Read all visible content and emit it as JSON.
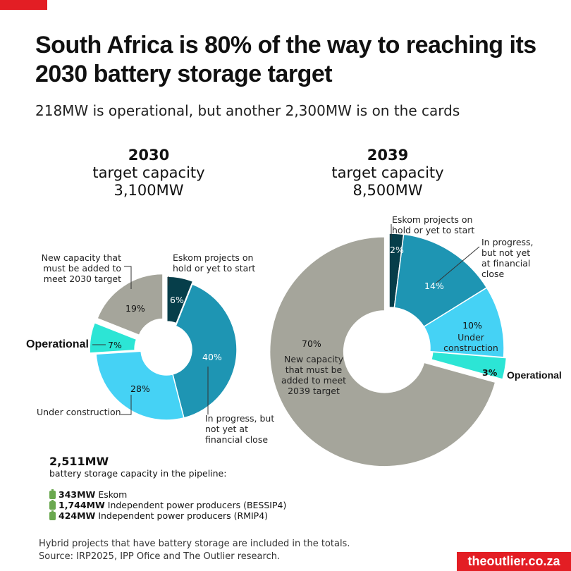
{
  "header": {
    "title": "South Africa is 80% of the way to reaching its 2030 battery storage target",
    "subtitle": "218MW is operational, but another 2,300MW is on the cards"
  },
  "colors": {
    "eskom": "#063e4a",
    "in_progress": "#1e95b3",
    "under_construction": "#45d2f5",
    "operational": "#2ce5d5",
    "new_capacity": "#a5a59b",
    "brand": "#e31e24"
  },
  "chart_data": [
    {
      "type": "pie",
      "donut": true,
      "year": "2030",
      "subtitle": "target capacity",
      "total": "3,100MW",
      "slices": [
        {
          "key": "eskom",
          "label": "Eskom projects on hold or yet to start",
          "value": 6,
          "pct": "6%"
        },
        {
          "key": "in_progress",
          "label": "In progress, but not yet at financial close",
          "value": 40,
          "pct": "40%"
        },
        {
          "key": "under_construction",
          "label": "Under construction",
          "value": 28,
          "pct": "28%"
        },
        {
          "key": "operational",
          "label": "Operational",
          "value": 7,
          "pct": "7%"
        },
        {
          "key": "new_capacity",
          "label": "New capacity that must be added to meet 2030 target",
          "value": 19,
          "pct": "19%"
        }
      ]
    },
    {
      "type": "pie",
      "donut": true,
      "year": "2039",
      "subtitle": "target capacity",
      "total": "8,500MW",
      "slices": [
        {
          "key": "eskom",
          "label": "Eskom projects on hold or yet to start",
          "value": 2,
          "pct": "2%"
        },
        {
          "key": "in_progress",
          "label": "In progress, but not yet at financial close",
          "value": 14,
          "pct": "14%"
        },
        {
          "key": "under_construction",
          "label": "Under construction",
          "value": 10,
          "pct": "10%"
        },
        {
          "key": "operational",
          "label": "Operational",
          "value": 3,
          "pct": "3%"
        },
        {
          "key": "new_capacity",
          "label": "New capacity that must be added to meet 2039 target",
          "value": 70,
          "pct": "70%"
        }
      ]
    }
  ],
  "labels": {
    "left_new": "New capacity that must be added to meet 2030 target",
    "left_eskom": "Eskom projects on hold or yet to start",
    "left_op": "Operational",
    "left_uc": "Under construction",
    "left_ip": "In progress, but not yet at financial close",
    "right_eskom": "Eskom projects on hold or yet to start",
    "right_ip": "In progress, but not yet at financial close",
    "right_uc": "Under construction",
    "right_op": "Operational",
    "right_new": "New capacity that must be added to meet 2039 target"
  },
  "pipeline": {
    "total": "2,511MW",
    "caption": "battery storage capacity in the pipeline:",
    "items": [
      {
        "value": "343MW",
        "label": "Eskom"
      },
      {
        "value": "1,744MW",
        "label": "Independent power producers (BESSIP4)"
      },
      {
        "value": "424MW",
        "label": "Independent power producers (RMIP4)"
      }
    ]
  },
  "notes": {
    "line1": "Hybrid projects that have battery storage are included in the totals.",
    "line2": "Source: IRP2025, IPP Ofice and The Outlier research."
  },
  "brand": "theoutlier.co.za"
}
